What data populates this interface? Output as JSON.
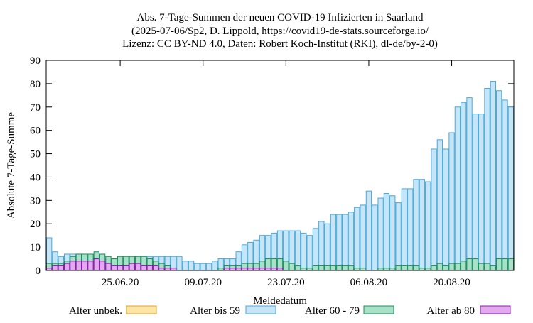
{
  "chart_data": {
    "type": "bar",
    "title_lines": [
      "Abs. 7-Tage-Summen der neuen COVID-19 Infizierten in Saarland",
      "(2025-07-06/Sp2, D. Lippold, https://covid19-de-stats.sourceforge.io/",
      "Lizenz: CC BY-ND 4.0, Daten: Robert Koch-Institut (RKI), dl-de/by-2-0)"
    ],
    "xlabel": "Meldedatum",
    "ylabel": "Absolute 7-Tage-Summe",
    "ylim": [
      0,
      90
    ],
    "yticks": [
      0,
      10,
      20,
      30,
      40,
      50,
      60,
      70,
      80,
      90
    ],
    "stacked": false,
    "first_date": "2020-06-13",
    "last_date": "2020-08-30",
    "xtick_labels": [
      {
        "date": "2020-06-25",
        "label": "25.06.20"
      },
      {
        "date": "2020-07-09",
        "label": "09.07.20"
      },
      {
        "date": "2020-07-23",
        "label": "23.07.20"
      },
      {
        "date": "2020-08-06",
        "label": "06.08.20"
      },
      {
        "date": "2020-08-20",
        "label": "20.08.20"
      }
    ],
    "series": [
      {
        "name": "Alter unbek.",
        "fill": "#fde5a8",
        "stroke": "#e6a11c",
        "values": [
          0,
          0,
          0,
          0,
          0,
          0,
          0,
          0,
          0,
          0,
          0,
          0,
          0,
          0,
          0,
          0,
          0,
          0,
          0,
          0,
          0,
          0,
          0,
          0,
          0,
          0,
          0,
          0,
          0,
          0,
          0,
          0,
          0,
          0,
          0,
          0,
          0,
          0,
          0,
          0,
          0,
          0,
          0,
          0,
          0,
          0,
          0,
          0,
          0,
          0,
          0,
          0,
          0,
          0,
          0,
          0,
          0,
          0,
          0,
          0,
          0,
          0,
          0,
          0,
          0,
          0,
          0,
          0,
          0,
          0,
          0,
          0,
          0,
          0,
          0,
          0,
          0,
          0,
          0
        ]
      },
      {
        "name": "Alter bis 59",
        "fill": "#c6e6f8",
        "stroke": "#4aa8d8",
        "values": [
          14,
          8,
          6,
          7,
          7,
          7,
          6,
          6,
          5,
          5,
          5,
          5,
          5,
          5,
          5,
          5,
          6,
          6,
          6,
          6,
          6,
          6,
          6,
          4,
          4,
          3,
          3,
          3,
          4,
          5,
          5,
          5,
          8,
          11,
          12,
          13,
          15,
          15,
          16,
          17,
          17,
          17,
          17,
          16,
          15,
          18,
          21,
          20,
          24,
          24,
          24,
          25,
          27,
          28,
          34,
          28,
          31,
          33,
          32,
          29,
          35,
          35,
          39,
          39,
          38,
          52,
          56,
          52,
          59,
          70,
          72,
          74,
          67,
          67,
          78,
          81,
          77,
          73,
          70
        ]
      },
      {
        "name": "Alter 60 - 79",
        "fill": "#a8e0c8",
        "stroke": "#1a8f5e",
        "values": [
          3,
          3,
          3,
          4,
          6,
          7,
          7,
          7,
          8,
          7,
          6,
          5,
          6,
          6,
          6,
          6,
          6,
          5,
          4,
          3,
          2,
          1,
          0,
          0,
          0,
          0,
          0,
          0,
          0,
          1,
          2,
          2,
          2,
          3,
          3,
          3,
          4,
          5,
          5,
          5,
          4,
          3,
          2,
          1,
          1,
          2,
          2,
          2,
          2,
          2,
          2,
          2,
          1,
          1,
          0,
          0,
          1,
          1,
          1,
          2,
          2,
          2,
          2,
          1,
          1,
          2,
          3,
          2,
          3,
          3,
          4,
          5,
          5,
          3,
          3,
          2,
          5,
          5,
          5
        ]
      },
      {
        "name": "Alter ab 80",
        "fill": "#e2a9ee",
        "stroke": "#8a1bb0",
        "values": [
          1,
          2,
          2,
          3,
          4,
          4,
          4,
          4,
          5,
          4,
          3,
          2,
          2,
          2,
          3,
          3,
          2,
          2,
          2,
          1,
          1,
          1,
          0,
          0,
          0,
          0,
          0,
          0,
          0,
          0,
          1,
          1,
          1,
          1,
          1,
          1,
          1,
          1,
          1,
          1,
          0,
          0,
          0,
          0,
          0,
          0,
          0,
          0,
          0,
          0,
          0,
          0,
          0,
          0,
          0,
          0,
          0,
          0,
          0,
          0,
          0,
          0,
          0,
          0,
          0,
          0,
          0,
          0,
          0,
          0,
          0,
          0,
          0,
          0,
          0,
          0,
          0,
          0,
          0
        ]
      }
    ],
    "legend": {
      "position": "bottom",
      "orientation": "horizontal"
    }
  }
}
